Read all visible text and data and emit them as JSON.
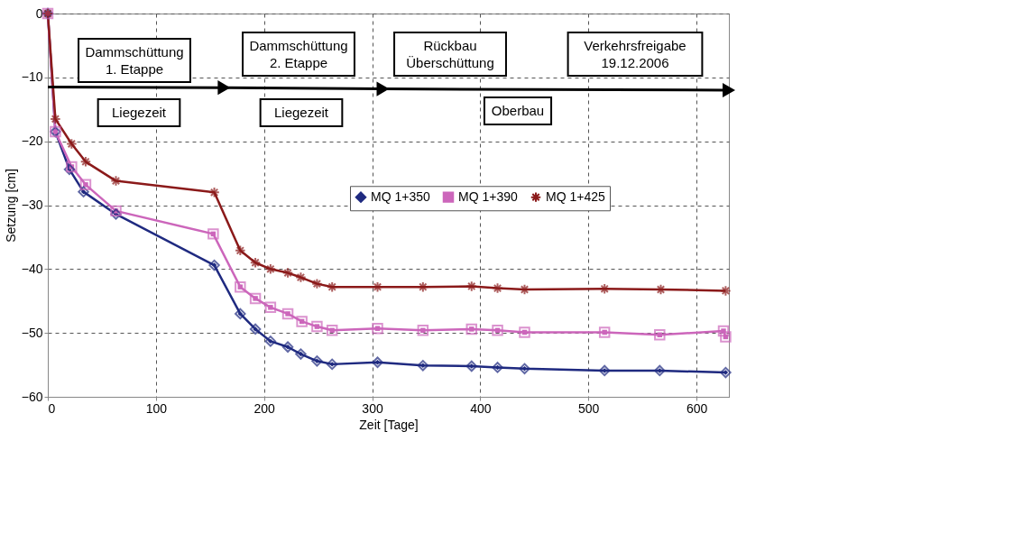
{
  "chart_data": {
    "type": "line",
    "xlabel": "Zeit [Tage]",
    "ylabel": "Setzung [cm]",
    "xlim": [
      0,
      630
    ],
    "xticks": [
      0,
      100,
      200,
      300,
      400,
      500,
      600
    ],
    "ylim": [
      -60,
      0
    ],
    "yticks": [
      0,
      -10,
      -20,
      -30,
      -40,
      -50,
      -60
    ],
    "grid": true,
    "legend": "top right",
    "line_style": "solid",
    "series": [
      {
        "name": "MQ 1+350",
        "color": "#1f2a80",
        "marker": "diamond",
        "x": [
          0,
          7,
          20,
          33,
          63,
          154,
          178,
          192,
          206,
          222,
          234,
          249,
          263,
          305,
          347,
          392,
          416,
          441,
          515,
          566,
          627
        ],
        "values": [
          0,
          -18.5,
          -24.4,
          -27.9,
          -31.4,
          -39.4,
          -47,
          -49.4,
          -51.3,
          -52.2,
          -53.3,
          -54.4,
          -54.9,
          -54.6,
          -55.1,
          -55.2,
          -55.4,
          -55.6,
          -55.9,
          -55.9,
          -56.2
        ]
      },
      {
        "name": "MQ 1+390",
        "color": "#cc66bb",
        "marker": "square",
        "x": [
          0,
          7,
          22,
          35,
          63,
          153,
          178,
          192,
          206,
          222,
          235,
          249,
          263,
          305,
          347,
          392,
          416,
          441,
          515,
          566,
          625,
          627
        ],
        "values": [
          0,
          -18.5,
          -24,
          -26.8,
          -30.9,
          -34.5,
          -42.8,
          -44.6,
          -46,
          -47,
          -48.2,
          -49,
          -49.6,
          -49.3,
          -49.6,
          -49.4,
          -49.6,
          -49.9,
          -49.9,
          -50.3,
          -49.7,
          -50.6
        ]
      },
      {
        "name": "MQ 1+425",
        "color": "#8b1a1a",
        "marker": "cross",
        "x": [
          0,
          7,
          22,
          35,
          63,
          154,
          178,
          192,
          206,
          222,
          234,
          249,
          263,
          305,
          347,
          392,
          416,
          441,
          515,
          567,
          627
        ],
        "values": [
          0,
          -16.5,
          -20.4,
          -23.2,
          -26.2,
          -28,
          -37.1,
          -39,
          -40,
          -40.6,
          -41.3,
          -42.3,
          -42.8,
          -42.8,
          -42.8,
          -42.7,
          -43,
          -43.2,
          -43.1,
          -43.2,
          -43.4
        ]
      },
      {
        "color": "#000000",
        "marker": "triangle",
        "x": [
          0,
          163,
          310,
          630
        ],
        "values": [
          -11.5,
          -11.6,
          -11.8,
          -12
        ]
      }
    ],
    "annotations": [
      "Dammschüttung\n1. Etappe",
      "Liegezeit",
      "Dammschüttung\n2. Etappe",
      "Liegezeit",
      "Rückbau\nÜberschüttung",
      "Oberbau",
      "Verkehrsfreigabe\n19.12.2006"
    ]
  }
}
